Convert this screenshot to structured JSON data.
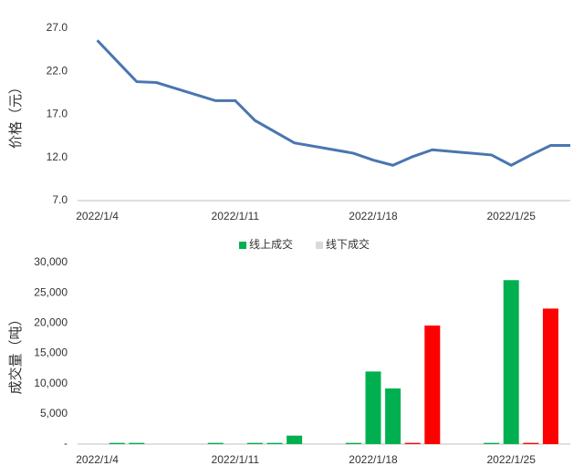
{
  "chart_data": [
    {
      "type": "line",
      "ylabel": "价格（元）",
      "x": [
        "2022/1/4",
        "2022/1/5",
        "2022/1/6",
        "2022/1/7",
        "2022/1/10",
        "2022/1/11",
        "2022/1/12",
        "2022/1/14",
        "2022/1/17",
        "2022/1/18",
        "2022/1/19",
        "2022/1/20",
        "2022/1/21",
        "2022/1/24",
        "2022/1/25",
        "2022/1/26",
        "2022/1/27",
        "2022/1/28"
      ],
      "series": [
        {
          "name": "价格",
          "color": "#4a76b0",
          "values": [
            25.6,
            23.2,
            20.8,
            20.7,
            18.6,
            18.6,
            16.3,
            13.7,
            12.5,
            11.7,
            11.1,
            12.1,
            12.9,
            12.3,
            11.1,
            12.3,
            13.4,
            13.4
          ]
        }
      ],
      "xlim": [
        "2022/1/3",
        "2022/1/28"
      ],
      "xticks": [
        "2022/1/4",
        "2022/1/11",
        "2022/1/18",
        "2022/1/25"
      ],
      "ylim": [
        7,
        27
      ],
      "yticks": [
        {
          "value": 7,
          "label": "7.0"
        },
        {
          "value": 12,
          "label": "12.0"
        },
        {
          "value": 17,
          "label": "17.0"
        },
        {
          "value": 22,
          "label": "22.0"
        },
        {
          "value": 27,
          "label": "27.0"
        }
      ],
      "grid": false
    },
    {
      "type": "bar",
      "ylabel": "成交量（吨）",
      "x": [
        "2022/1/5",
        "2022/1/6",
        "2022/1/10",
        "2022/1/12",
        "2022/1/13",
        "2022/1/14",
        "2022/1/17",
        "2022/1/18",
        "2022/1/19",
        "2022/1/20",
        "2022/1/21",
        "2022/1/24",
        "2022/1/25",
        "2022/1/26",
        "2022/1/27"
      ],
      "series": [
        {
          "name": "线上成交",
          "color": "#00b050",
          "legend_color": "#00b050",
          "values": [
            200,
            200,
            200,
            200,
            200,
            1400,
            200,
            12000,
            9200,
            null,
            null,
            200,
            27100,
            null,
            null
          ]
        },
        {
          "name": "线下成交",
          "color": "#ff0000",
          "legend_color": "#d9d9d9",
          "values": [
            null,
            null,
            null,
            null,
            null,
            null,
            null,
            null,
            null,
            200,
            19600,
            null,
            null,
            200,
            22400
          ]
        }
      ],
      "xlim": [
        "2022/1/3",
        "2022/1/28"
      ],
      "xticks": [
        "2022/1/4",
        "2022/1/11",
        "2022/1/18",
        "2022/1/25"
      ],
      "ylim": [
        0,
        30000
      ],
      "yticks": [
        {
          "value": 0,
          "label": "-"
        },
        {
          "value": 5000,
          "label": "5,000"
        },
        {
          "value": 10000,
          "label": "10,000"
        },
        {
          "value": 15000,
          "label": "15,000"
        },
        {
          "value": 20000,
          "label": "20,000"
        },
        {
          "value": 25000,
          "label": "25,000"
        },
        {
          "value": 30000,
          "label": "30,000"
        }
      ],
      "legend": "top",
      "grid": false
    }
  ]
}
